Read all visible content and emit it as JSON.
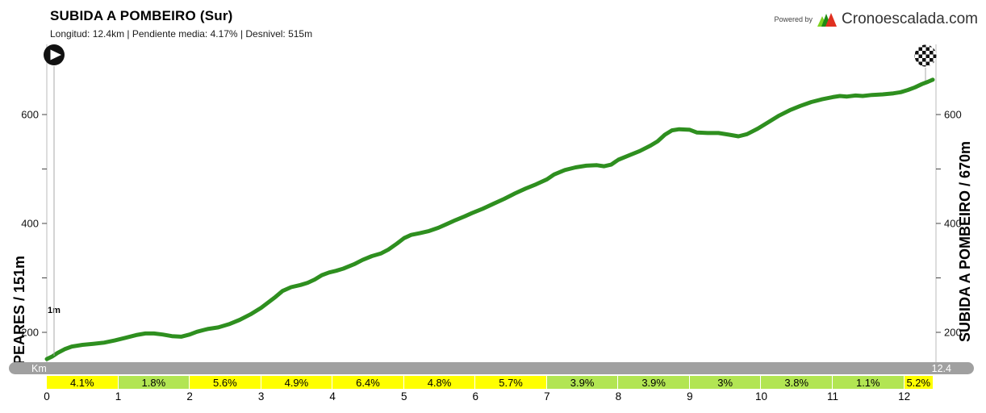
{
  "header": {
    "title": "SUBIDA A POMBEIRO  (Sur)",
    "subtitle": "Longitud: 12.4km | Pendiente media: 4.17% | Desnivel: 515m"
  },
  "branding": {
    "powered_by": "Powered by",
    "brand": "Cronoescalada.com"
  },
  "axes": {
    "left_label": "PEARES / 151m",
    "right_label": "SUBIDA A POMBEIRO / 670m",
    "start_annotation": "1m",
    "km_bar_label": "Km",
    "km_bar_total": "12.4"
  },
  "chart_data": {
    "type": "line",
    "title": "SUBIDA A POMBEIRO (Sur)",
    "x_unit": "km",
    "y_unit": "m",
    "length_km": 12.4,
    "avg_gradient_pct": 4.17,
    "elevation_gain_m": 515,
    "start_name": "PEARES",
    "start_elevation_m": 151,
    "end_name": "SUBIDA A POMBEIRO",
    "end_elevation_m": 670,
    "x_ticks": [
      0,
      1,
      2,
      3,
      4,
      5,
      6,
      7,
      8,
      9,
      10,
      11,
      12
    ],
    "y_ticks_labeled": [
      200,
      400,
      600
    ],
    "y_ticks_all": [
      200,
      300,
      400,
      500,
      600
    ],
    "grid": false,
    "profile_points": [
      [
        0,
        151
      ],
      [
        0.08,
        156
      ],
      [
        0.15,
        162
      ],
      [
        0.25,
        169
      ],
      [
        0.35,
        174
      ],
      [
        0.5,
        177
      ],
      [
        0.65,
        179
      ],
      [
        0.8,
        181
      ],
      [
        0.95,
        185
      ],
      [
        1.1,
        190
      ],
      [
        1.25,
        195
      ],
      [
        1.38,
        198
      ],
      [
        1.5,
        198
      ],
      [
        1.62,
        196
      ],
      [
        1.75,
        193
      ],
      [
        1.88,
        192
      ],
      [
        2.0,
        196
      ],
      [
        2.1,
        201
      ],
      [
        2.25,
        206
      ],
      [
        2.4,
        209
      ],
      [
        2.55,
        215
      ],
      [
        2.7,
        223
      ],
      [
        2.85,
        233
      ],
      [
        3.0,
        245
      ],
      [
        3.1,
        255
      ],
      [
        3.2,
        265
      ],
      [
        3.3,
        276
      ],
      [
        3.42,
        283
      ],
      [
        3.55,
        287
      ],
      [
        3.65,
        291
      ],
      [
        3.75,
        297
      ],
      [
        3.85,
        305
      ],
      [
        3.95,
        310
      ],
      [
        4.05,
        313
      ],
      [
        4.15,
        317
      ],
      [
        4.3,
        325
      ],
      [
        4.42,
        333
      ],
      [
        4.55,
        340
      ],
      [
        4.68,
        345
      ],
      [
        4.78,
        352
      ],
      [
        4.9,
        363
      ],
      [
        5.0,
        373
      ],
      [
        5.1,
        379
      ],
      [
        5.22,
        382
      ],
      [
        5.35,
        386
      ],
      [
        5.48,
        392
      ],
      [
        5.6,
        399
      ],
      [
        5.72,
        406
      ],
      [
        5.85,
        413
      ],
      [
        5.95,
        419
      ],
      [
        6.1,
        427
      ],
      [
        6.25,
        436
      ],
      [
        6.4,
        445
      ],
      [
        6.55,
        455
      ],
      [
        6.7,
        464
      ],
      [
        6.85,
        472
      ],
      [
        7.0,
        481
      ],
      [
        7.1,
        490
      ],
      [
        7.25,
        498
      ],
      [
        7.4,
        503
      ],
      [
        7.55,
        506
      ],
      [
        7.7,
        507
      ],
      [
        7.8,
        505
      ],
      [
        7.9,
        508
      ],
      [
        8.0,
        517
      ],
      [
        8.15,
        525
      ],
      [
        8.3,
        533
      ],
      [
        8.45,
        543
      ],
      [
        8.55,
        551
      ],
      [
        8.65,
        563
      ],
      [
        8.75,
        571
      ],
      [
        8.85,
        573
      ],
      [
        9.0,
        572
      ],
      [
        9.1,
        567
      ],
      [
        9.25,
        566
      ],
      [
        9.4,
        566
      ],
      [
        9.55,
        563
      ],
      [
        9.68,
        560
      ],
      [
        9.8,
        564
      ],
      [
        9.95,
        574
      ],
      [
        10.1,
        586
      ],
      [
        10.25,
        598
      ],
      [
        10.4,
        608
      ],
      [
        10.55,
        616
      ],
      [
        10.7,
        623
      ],
      [
        10.85,
        628
      ],
      [
        11.0,
        632
      ],
      [
        11.1,
        634
      ],
      [
        11.2,
        633
      ],
      [
        11.32,
        635
      ],
      [
        11.42,
        634
      ],
      [
        11.55,
        636
      ],
      [
        11.7,
        637
      ],
      [
        11.85,
        639
      ],
      [
        11.95,
        641
      ],
      [
        12.05,
        645
      ],
      [
        12.15,
        650
      ],
      [
        12.25,
        656
      ],
      [
        12.33,
        660
      ],
      [
        12.4,
        664
      ]
    ],
    "gradient_segments": [
      {
        "from_km": 0,
        "to_km": 1,
        "label": "4.1%",
        "tone": "yellow"
      },
      {
        "from_km": 1,
        "to_km": 2,
        "label": "1.8%",
        "tone": "green"
      },
      {
        "from_km": 2,
        "to_km": 3,
        "label": "5.6%",
        "tone": "yellow"
      },
      {
        "from_km": 3,
        "to_km": 4,
        "label": "4.9%",
        "tone": "yellow"
      },
      {
        "from_km": 4,
        "to_km": 5,
        "label": "6.4%",
        "tone": "yellow"
      },
      {
        "from_km": 5,
        "to_km": 6,
        "label": "4.8%",
        "tone": "yellow"
      },
      {
        "from_km": 6,
        "to_km": 7,
        "label": "5.7%",
        "tone": "yellow"
      },
      {
        "from_km": 7,
        "to_km": 8,
        "label": "3.9%",
        "tone": "green"
      },
      {
        "from_km": 8,
        "to_km": 9,
        "label": "3.9%",
        "tone": "green"
      },
      {
        "from_km": 9,
        "to_km": 10,
        "label": "3%",
        "tone": "green"
      },
      {
        "from_km": 10,
        "to_km": 11,
        "label": "3.8%",
        "tone": "green"
      },
      {
        "from_km": 11,
        "to_km": 12,
        "label": "1.1%",
        "tone": "green"
      },
      {
        "from_km": 12,
        "to_km": 12.4,
        "label": "5.2%",
        "tone": "yellow"
      }
    ],
    "colors": {
      "line": "#2e8f1f",
      "yellow": "#ffff00",
      "green": "#b2e553",
      "km_bar": "#a0a0a0",
      "axis": "#bbbbbb",
      "logo_light_green": "#7ed321",
      "logo_dark_green": "#1e8a14",
      "logo_red": "#e03020"
    }
  }
}
